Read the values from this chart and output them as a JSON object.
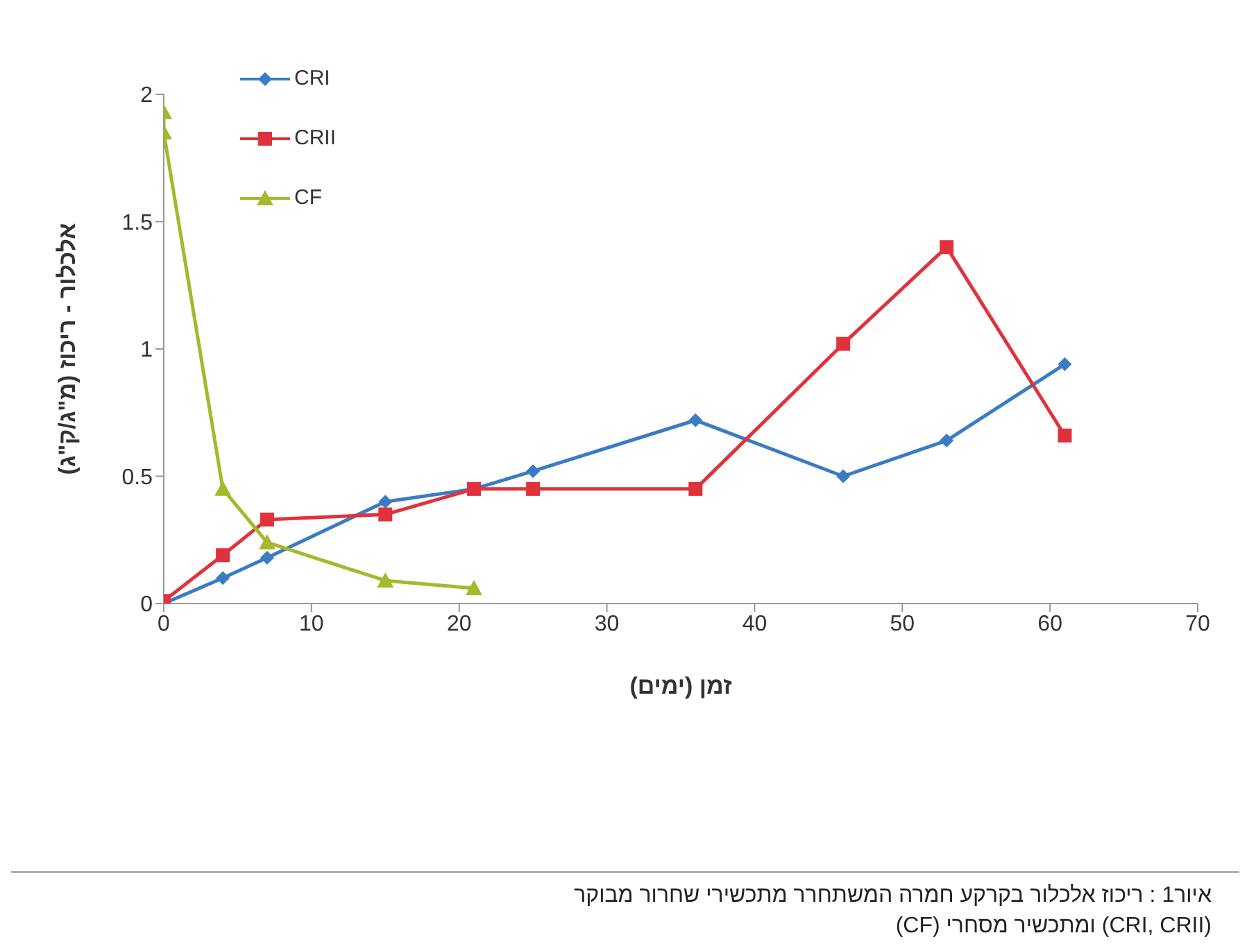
{
  "chart_data": {
    "type": "line",
    "xlabel": "זמן (ימים)",
    "ylabel": "אלכלור - ריכוז (מ\"ג/ק\"ג)",
    "xlim": [
      0,
      70
    ],
    "xticks": [
      0,
      10,
      20,
      30,
      40,
      50,
      60,
      70
    ],
    "ylim": [
      0,
      2
    ],
    "yticks": [
      0,
      0.5,
      1,
      1.5,
      2
    ],
    "grid": false,
    "legend": "top left",
    "line_style": "solid",
    "series": [
      {
        "name": "CRI",
        "color": "#3a7cc4",
        "marker": "diamond",
        "x": [
          0,
          4,
          7,
          15,
          21,
          25,
          36,
          46,
          53,
          61
        ],
        "values": [
          0,
          0.1,
          0.18,
          0.4,
          0.45,
          0.52,
          0.72,
          0.5,
          0.64,
          0.94
        ]
      },
      {
        "name": "CRII",
        "color": "#e0323c",
        "marker": "square",
        "x": [
          0,
          4,
          7,
          15,
          21,
          25,
          36,
          46,
          53,
          61
        ],
        "values": [
          0.01,
          0.19,
          0.33,
          0.35,
          0.45,
          0.45,
          0.45,
          1.02,
          1.4,
          0.66
        ]
      },
      {
        "name": "CF",
        "color": "#a4b92c",
        "marker": "triangle",
        "x": [
          0,
          0,
          4,
          7,
          15,
          21
        ],
        "values": [
          1.93,
          1.85,
          0.45,
          0.24,
          0.09,
          0.06
        ]
      }
    ],
    "annotations": [
      "איור1 : ריכוז אלכלור בקרקע חמרה המשתחרר מתכשירי שחרור מבוקר (CRI, CRII) ומתכשיר מסחרי (CF)"
    ]
  }
}
